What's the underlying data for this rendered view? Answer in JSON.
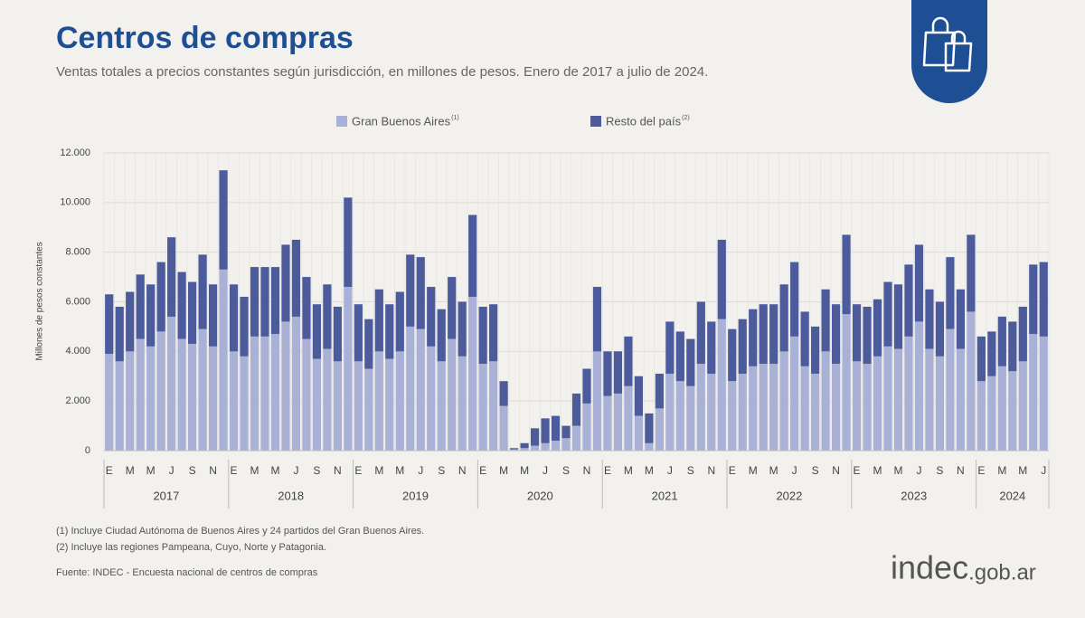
{
  "chart_data": {
    "type": "stacked_bar",
    "title": "Centros de compras",
    "subtitle": "Ventas totales a precios constantes según jurisdicción, en millones de pesos. Enero de 2017 a julio de 2024.",
    "y_label": "Millones de pesos constantes",
    "categories": [
      "E",
      null,
      "M",
      null,
      "M",
      null,
      "J",
      null,
      "S",
      null,
      "N",
      null,
      "E",
      null,
      "M",
      null,
      "M",
      null,
      "J",
      null,
      "S",
      null,
      "N",
      null,
      "E",
      null,
      "M",
      null,
      "M",
      null,
      "J",
      null,
      "S",
      null,
      "N",
      null,
      "E",
      null,
      "M",
      null,
      "M",
      null,
      "J",
      null,
      "S",
      null,
      "N",
      null,
      "E",
      null,
      "M",
      null,
      "M",
      null,
      "J",
      null,
      "S",
      null,
      "N",
      null,
      "E",
      null,
      "M",
      null,
      "M",
      null,
      "J",
      null,
      "S",
      null,
      "N",
      null,
      "E",
      null,
      "M",
      null,
      "M",
      null,
      "J",
      null,
      "S",
      null,
      "N",
      null,
      "E",
      null,
      "M",
      null,
      "M",
      null,
      "J"
    ],
    "years": [
      "2017",
      "2018",
      "2019",
      "2020",
      "2021",
      "2022",
      "2023",
      "2024"
    ],
    "series": [
      {
        "name": "Gran Buenos Aires",
        "note": "(1)",
        "color": "#aab1d6",
        "values": [
          3900,
          3600,
          4000,
          4500,
          4200,
          4800,
          5400,
          4500,
          4300,
          4900,
          4200,
          7300,
          4000,
          3800,
          4600,
          4600,
          4700,
          5200,
          5400,
          4500,
          3700,
          4100,
          3600,
          6600,
          3600,
          3300,
          4000,
          3700,
          4000,
          5000,
          4900,
          4200,
          3600,
          4500,
          3800,
          6200,
          3500,
          3600,
          1800,
          50,
          100,
          200,
          300,
          400,
          500,
          1000,
          1900,
          4000,
          2200,
          2300,
          2600,
          1400,
          300,
          1700,
          3100,
          2800,
          2600,
          3500,
          3100,
          5300,
          2800,
          3100,
          3400,
          3500,
          3500,
          4000,
          4600,
          3400,
          3100,
          4000,
          3500,
          5500,
          3600,
          3500,
          3800,
          4200,
          4100,
          4600,
          5200,
          4100,
          3800,
          4900,
          4100,
          5600,
          2800,
          3000,
          3400,
          3200,
          3600,
          4700,
          4600
        ]
      },
      {
        "name": "Resto del país",
        "note": "(2)",
        "color": "#4b5b9c",
        "values": [
          2400,
          2200,
          2400,
          2600,
          2500,
          2800,
          3200,
          2700,
          2500,
          3000,
          2500,
          4000,
          2700,
          2400,
          2800,
          2800,
          2700,
          3100,
          3100,
          2500,
          2200,
          2600,
          2200,
          3600,
          2300,
          2000,
          2500,
          2200,
          2400,
          2900,
          2900,
          2400,
          2100,
          2500,
          2200,
          3300,
          2300,
          2300,
          1000,
          50,
          200,
          700,
          1000,
          1000,
          500,
          1300,
          1400,
          2600,
          1800,
          1700,
          2000,
          1600,
          1200,
          1400,
          2100,
          2000,
          1900,
          2500,
          2100,
          3200,
          2100,
          2200,
          2300,
          2400,
          2400,
          2700,
          3000,
          2200,
          1900,
          2500,
          2400,
          3200,
          2300,
          2300,
          2300,
          2600,
          2600,
          2900,
          3100,
          2400,
          2200,
          2900,
          2400,
          3100,
          1800,
          1800,
          2000,
          2000,
          2200,
          2800,
          3000
        ]
      }
    ],
    "ylim": [
      0,
      12000
    ],
    "yticks": [
      0,
      {
        "value": 2000,
        "label": "2.000"
      },
      {
        "value": 4000,
        "label": "4.000"
      },
      {
        "value": 6000,
        "label": "6.000"
      },
      {
        "value": 8000,
        "label": "8.000"
      },
      {
        "value": 10000,
        "label": "10.000"
      },
      {
        "value": 12000,
        "label": "12.000"
      }
    ],
    "grid": true,
    "footnotes": [
      "(1) Incluye Ciudad Autónoma de Buenos Aires y 24 partidos del Gran Buenos Aires.",
      "(2) Incluye las regiones Pampeana, Cuyo, Norte y Patagonia."
    ],
    "source": "Fuente: INDEC - Encuesta nacional de centros de compras",
    "logo": {
      "main": "indec",
      "domain": ".gob.ar"
    }
  }
}
